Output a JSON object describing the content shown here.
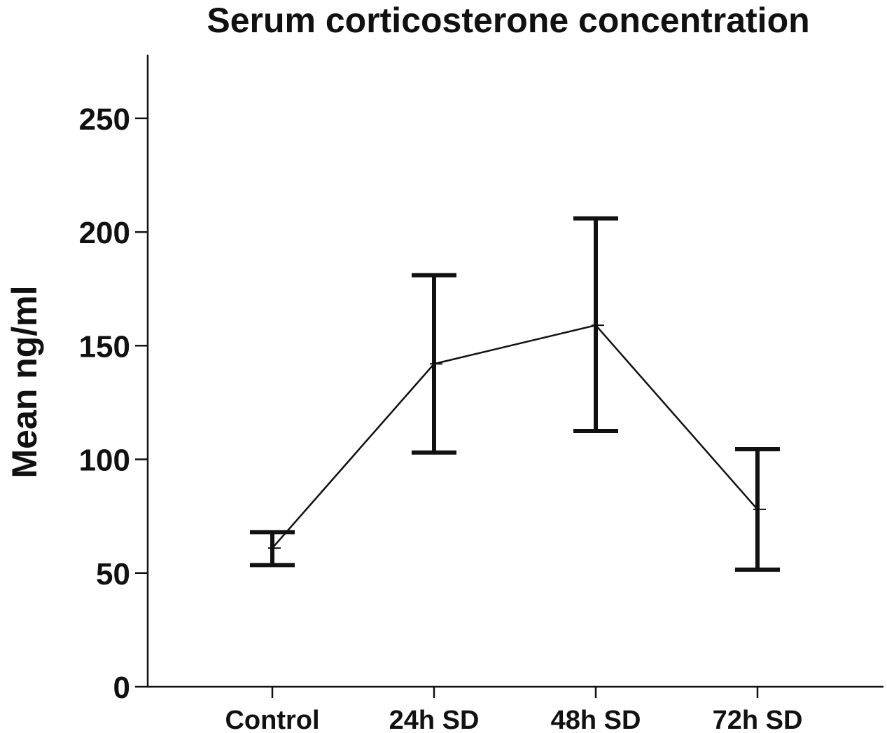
{
  "chart_data": {
    "type": "line",
    "title": "Serum corticosterone concentration",
    "xlabel": "",
    "ylabel": "Mean ng/ml",
    "categories": [
      "Control",
      "24h SD",
      "48h SD",
      "72h SD"
    ],
    "series": [
      {
        "values": [
          61,
          142,
          159,
          78
        ],
        "error_low": [
          53.5,
          103,
          112.5,
          51.5
        ],
        "error_high": [
          68,
          181,
          206,
          104.5
        ]
      }
    ],
    "ylim": [
      0,
      278
    ],
    "yticks": [
      0,
      50,
      100,
      150,
      200,
      250
    ],
    "grid": false,
    "legend": "none"
  }
}
